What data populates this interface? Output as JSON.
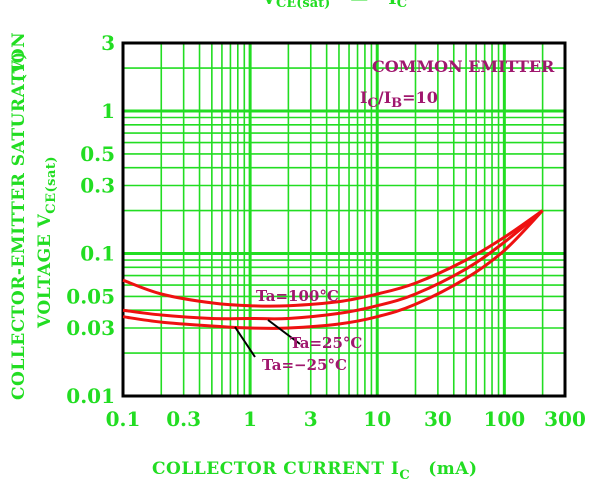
{
  "header": {
    "title_main": "V",
    "title_sub": "CE(sat)",
    "title_mid": "—",
    "title_end": "I",
    "title_end_sub": "C"
  },
  "chart_data": {
    "type": "line",
    "x_scale": "log",
    "y_scale": "log",
    "xlim": [
      0.1,
      300
    ],
    "ylim": [
      0.01,
      3
    ],
    "x_ticks": [
      "0.1",
      "0.3",
      "1",
      "3",
      "10",
      "30",
      "100",
      "300"
    ],
    "y_ticks": [
      "3",
      "1",
      "0.5",
      "0.3",
      "0.1",
      "0.05",
      "0.03",
      "0.01"
    ],
    "xlabel_main": "COLLECTOR CURRENT I",
    "xlabel_sub": "C",
    "xlabel_unit": "(mA)",
    "ylabel_line1": "COLLECTOR-EMITTER SATURATION",
    "ylabel_unit": "(V)",
    "ylabel_line2_main": "VOLTAGE V",
    "ylabel_line2_sub": "CE(sat)",
    "annotation_line1": "COMMON EMITTER",
    "annotation_line2_a": "I",
    "annotation_line2_a_sub": "C",
    "annotation_line2_b": "/I",
    "annotation_line2_b_sub": "B",
    "annotation_line2_c": "=10",
    "grid": true,
    "colors": {
      "grid": "#22dd22",
      "curve": "#ee1111",
      "label": "#a0186e",
      "axis": "#000000"
    },
    "series": [
      {
        "name": "Ta=100°C",
        "x": [
          0.1,
          0.2,
          0.5,
          1,
          2,
          5,
          10,
          20,
          50,
          100,
          200
        ],
        "y": [
          0.065,
          0.052,
          0.045,
          0.043,
          0.043,
          0.046,
          0.052,
          0.062,
          0.09,
          0.13,
          0.2
        ]
      },
      {
        "name": "Ta=25°C",
        "x": [
          0.1,
          0.2,
          0.5,
          1,
          2,
          5,
          10,
          20,
          50,
          100,
          200
        ],
        "y": [
          0.04,
          0.037,
          0.035,
          0.035,
          0.035,
          0.038,
          0.043,
          0.052,
          0.078,
          0.12,
          0.2
        ]
      },
      {
        "name": "Ta=-25°C",
        "x": [
          0.1,
          0.2,
          0.5,
          1,
          2,
          5,
          10,
          20,
          50,
          100,
          200
        ],
        "y": [
          0.036,
          0.033,
          0.031,
          0.03,
          0.03,
          0.032,
          0.036,
          0.044,
          0.067,
          0.105,
          0.2
        ]
      }
    ],
    "series_labels": [
      "Ta=100°C",
      "Ta=25°C",
      "Ta=−25°C"
    ]
  }
}
